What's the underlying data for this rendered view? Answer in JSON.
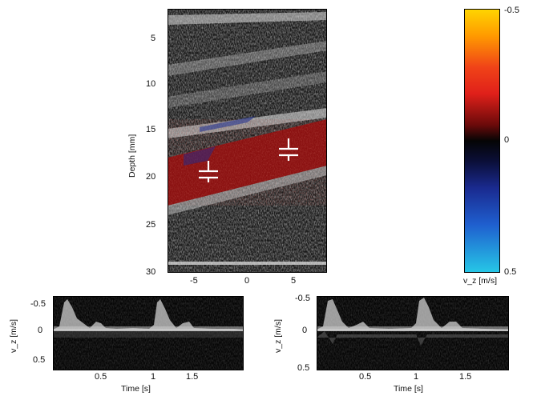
{
  "main_image": {
    "ylabel": "Depth [mm]",
    "yticks": [
      "5",
      "10",
      "15",
      "20",
      "25",
      "30"
    ],
    "xticks": [
      "-5",
      "0",
      "5"
    ]
  },
  "colorbar": {
    "label": "v_z [m/s]",
    "ticks": [
      "-0.5",
      "0",
      "0.5"
    ],
    "colors": {
      "top": "#ffd400",
      "upper": "#e0201a",
      "mid": "#050505",
      "lower": "#1a2a8f",
      "bottom": "#26c6e6"
    }
  },
  "spectrogram_left": {
    "ylabel": "v_z [m/s]",
    "yticks": [
      "-0.5",
      "0",
      "0.5"
    ],
    "xlabel": "Time [s]",
    "xticks": [
      "0.5",
      "1",
      "1.5"
    ]
  },
  "spectrogram_right": {
    "ylabel": "v_z [m/s]",
    "yticks": [
      "-0.5",
      "0",
      "0.5"
    ],
    "xlabel": "Time [s]",
    "xticks": [
      "0.5",
      "1",
      "1.5"
    ]
  }
}
